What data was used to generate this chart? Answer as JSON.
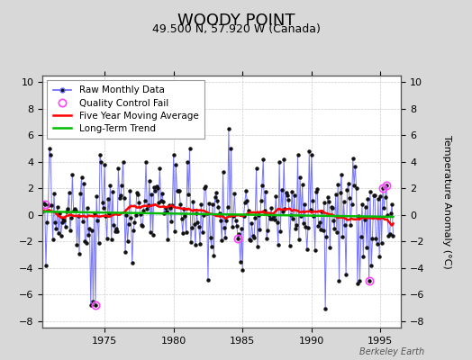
{
  "title": "WOODY POINT",
  "subtitle": "49.500 N, 57.920 W (Canada)",
  "ylabel": "Temperature Anomaly (°C)",
  "watermark": "Berkeley Earth",
  "xlim": [
    1970.5,
    1996.5
  ],
  "ylim": [
    -8.5,
    10.5
  ],
  "yticks": [
    -8,
    -6,
    -4,
    -2,
    0,
    2,
    4,
    6,
    8,
    10
  ],
  "xticks": [
    1975,
    1980,
    1985,
    1990,
    1995
  ],
  "bg_color": "#d8d8d8",
  "plot_bg_color": "#ffffff",
  "raw_line_color": "#6666ff",
  "raw_marker_color": "#111111",
  "moving_avg_color": "#ff0000",
  "trend_color": "#00bb00",
  "qc_fail_color": "#ff44ff",
  "title_fontsize": 13,
  "subtitle_fontsize": 9,
  "legend_fontsize": 7.5,
  "axis_fontsize": 8,
  "watermark_fontsize": 7,
  "seed": 42,
  "n_months": 312,
  "start_year": 1970,
  "moving_avg_window": 60
}
